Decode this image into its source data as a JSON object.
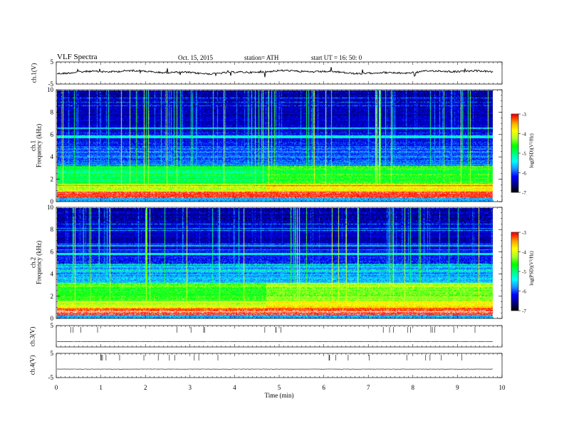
{
  "header": {
    "title": "VLF  Spectra",
    "date": "Oct. 15, 2015",
    "station": "station= ATH",
    "start": "start  UT  =    16: 50: 0"
  },
  "chart_data": [
    {
      "type": "line",
      "panel": "ch1-waveform",
      "ylabel": "ch.1(V)",
      "ylim": [
        -5,
        5
      ],
      "yticks": [
        "5",
        "-5"
      ],
      "xlim": [
        0,
        10
      ],
      "trace_level": 0.4,
      "trace_end_min": 9.8
    },
    {
      "type": "heatmap",
      "panel": "ch1-spectrogram",
      "ylabel_outer": "ch.1",
      "ylabel": "Frequency  (kHz)",
      "ylim": [
        0,
        10
      ],
      "yticks": [
        "0",
        "2",
        "4",
        "6",
        "8",
        "10"
      ],
      "xlim": [
        0,
        10
      ],
      "data_end_min": 9.8,
      "colorbar": {
        "label": "log(PSD)(V²/Hz)",
        "range": [
          -7,
          -3
        ],
        "ticks": [
          "-3",
          "-4",
          "-5",
          "-6",
          "-7"
        ]
      }
    },
    {
      "type": "heatmap",
      "panel": "ch2-spectrogram",
      "ylabel_outer": "ch.2",
      "ylabel": "Frequency  (kHz)",
      "ylim": [
        0,
        10
      ],
      "yticks": [
        "0",
        "2",
        "4",
        "6",
        "8",
        "10"
      ],
      "xlim": [
        0,
        10
      ],
      "data_end_min": 9.8,
      "colorbar": {
        "label": "log(PSD)(V²/Hz)",
        "range": [
          -7,
          -3
        ],
        "ticks": [
          "-3",
          "-4",
          "-5",
          "-6",
          "-7"
        ]
      }
    },
    {
      "type": "line",
      "panel": "ch3-waveform",
      "ylabel": "ch.3(V)",
      "ylim": [
        -5,
        5
      ],
      "yticks": [
        "5"
      ],
      "xlim": [
        0,
        10
      ],
      "trace_level": -2.5,
      "trace_end_min": 9.8
    },
    {
      "type": "line",
      "panel": "ch4-waveform",
      "ylabel": "ch.4(V)",
      "ylim": [
        -5,
        5
      ],
      "yticks": [
        "5",
        "-5"
      ],
      "xlim": [
        0,
        10
      ],
      "trace_level": -1.5,
      "trace_end_min": 9.8
    }
  ],
  "x_axis": {
    "label": "Time  (min)",
    "ticks": [
      "0",
      "1",
      "2",
      "3",
      "4",
      "5",
      "6",
      "7",
      "8",
      "9",
      "10"
    ]
  },
  "colors": {
    "axis": "#000000",
    "background": "#ffffff"
  },
  "colormap": [
    "#000000",
    "#00008b",
    "#0000ff",
    "#1e90ff",
    "#00ffff",
    "#00ff7f",
    "#00ff00",
    "#adff2f",
    "#ffff00",
    "#ffa500",
    "#ff0000",
    "#ffffff"
  ]
}
